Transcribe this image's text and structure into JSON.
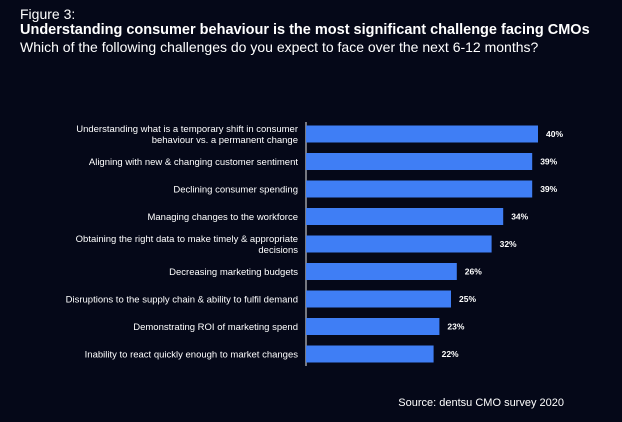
{
  "figure_label": "Figure 3:",
  "title": "Understanding consumer behaviour is the most significant challenge facing CMOs",
  "subtitle": "Which of the following challenges do you expect to face over the next 6-12 months?",
  "source": "Source: dentsu CMO survey 2020",
  "colors": {
    "background": "#050818",
    "bar": "#3f7ef5",
    "text": "#ffffff",
    "axis": "#e8e8e8"
  },
  "chart_data": {
    "type": "bar",
    "orientation": "horizontal",
    "categories": [
      [
        "Understanding what is a temporary shift in consumer",
        "behaviour vs. a permanent change"
      ],
      [
        "Aligning with new & changing customer sentiment"
      ],
      [
        "Declining consumer spending"
      ],
      [
        "Managing changes to the workforce"
      ],
      [
        "Obtaining the right data to make timely & appropriate",
        "decisions"
      ],
      [
        "Decreasing marketing budgets"
      ],
      [
        "Disruptions to the supply chain & ability to fulfil demand"
      ],
      [
        "Demonstrating ROI of marketing spend"
      ],
      [
        "Inability to react quickly enough to market changes"
      ]
    ],
    "values": [
      40,
      39,
      39,
      34,
      32,
      26,
      25,
      23,
      22
    ],
    "value_labels": [
      "40%",
      "39%",
      "39%",
      "34%",
      "32%",
      "26%",
      "25%",
      "23%",
      "22%"
    ],
    "unit": "%",
    "xlim": [
      0,
      40
    ],
    "grid": false,
    "legend": "none"
  }
}
